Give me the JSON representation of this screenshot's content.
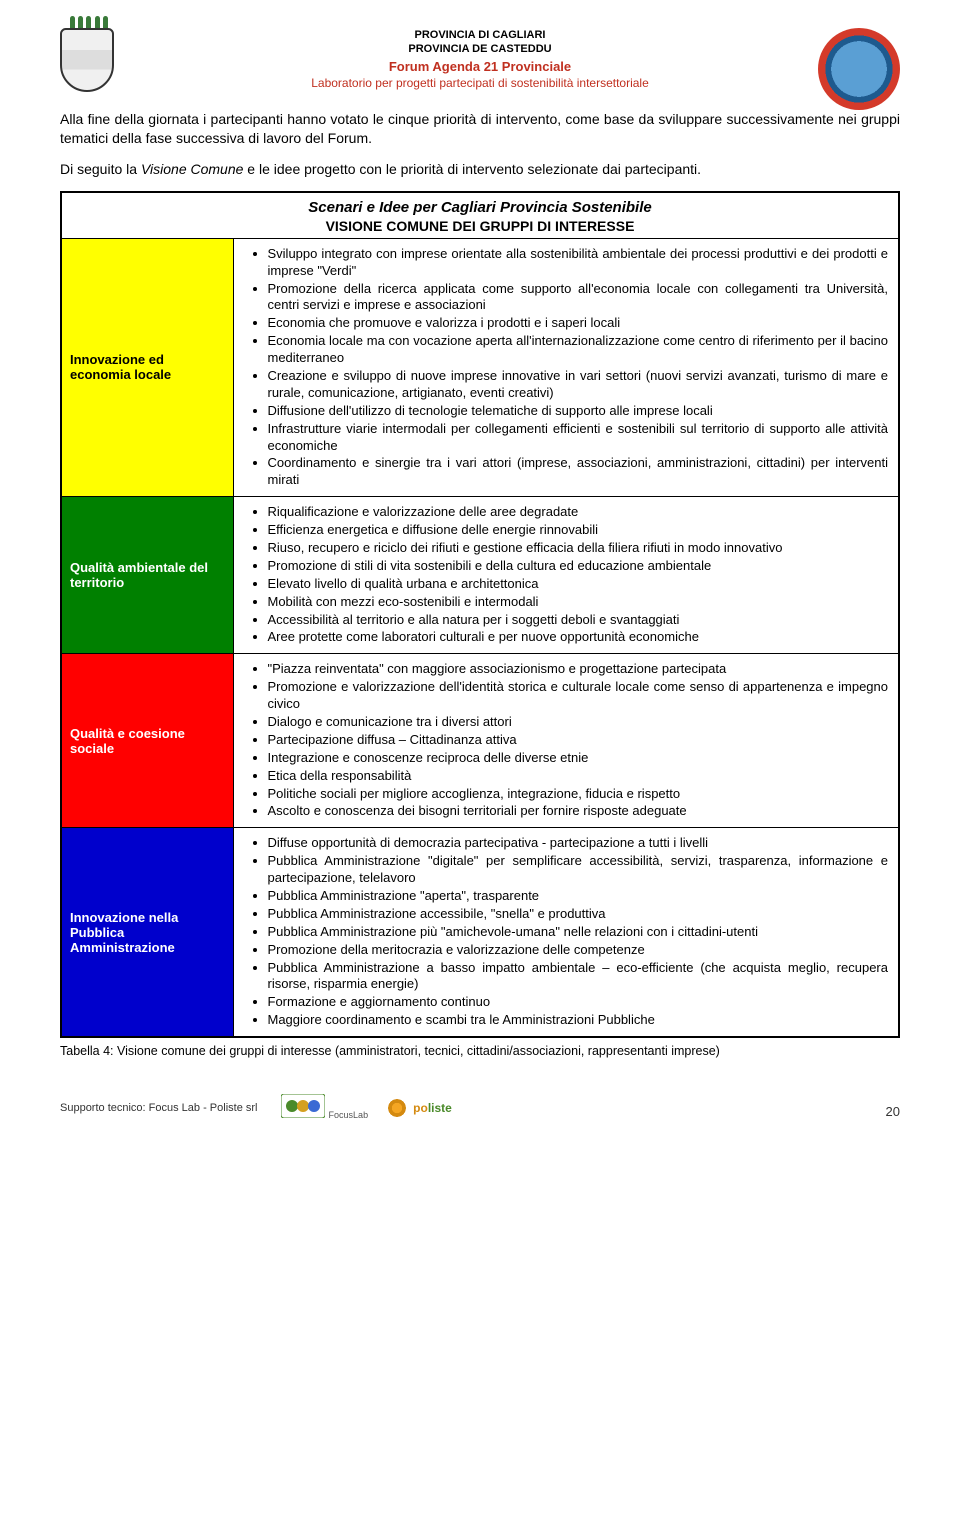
{
  "header": {
    "line1": "PROVINCIA DI CAGLIARI",
    "line2": "PROVINCIA DE CASTEDDU",
    "line3": "Forum Agenda 21 Provinciale",
    "line4": "Laboratorio per progetti partecipati di sostenibilità intersettoriale"
  },
  "intro": {
    "p1": "Alla fine della giornata i partecipanti hanno votato le cinque priorità di intervento, come base da sviluppare successivamente nei gruppi tematici della fase successiva di lavoro del Forum.",
    "p2a": "Di seguito la ",
    "p2b": "Visione Comune",
    "p2c": " e le idee progetto con le priorità di intervento selezionate dai partecipanti."
  },
  "table": {
    "title1": "Scenari e Idee per Cagliari Provincia Sostenibile",
    "title2": "VISIONE COMUNE DEI GRUPPI DI INTERESSE",
    "rows": [
      {
        "label": "Innovazione ed economia locale",
        "color": "#ffff00",
        "textcolor": "#000000",
        "items": [
          "Sviluppo integrato con imprese orientate alla sostenibilità ambientale dei processi produttivi e dei prodotti e imprese \"Verdi\"",
          "Promozione della ricerca applicata come supporto all'economia locale con collegamenti tra Università, centri servizi e imprese e associazioni",
          "Economia che promuove e valorizza i prodotti e i saperi locali",
          "Economia locale ma con vocazione aperta all'internazionalizzazione come centro di riferimento per il bacino mediterraneo",
          "Creazione e sviluppo di nuove imprese innovative in vari settori (nuovi servizi avanzati, turismo di mare e rurale, comunicazione, artigianato, eventi creativi)",
          "Diffusione dell'utilizzo di tecnologie telematiche di supporto alle imprese locali",
          "Infrastrutture viarie intermodali per collegamenti efficienti e sostenibili sul territorio di supporto alle attività economiche",
          "Coordinamento e sinergie tra i vari attori (imprese, associazioni, amministrazioni, cittadini) per interventi mirati"
        ]
      },
      {
        "label": "Qualità ambientale del territorio",
        "color": "#008000",
        "textcolor": "#ffffff",
        "items": [
          "Riqualificazione e valorizzazione delle aree degradate",
          "Efficienza energetica e diffusione delle energie rinnovabili",
          "Riuso, recupero e riciclo dei rifiuti e gestione efficacia della filiera rifiuti in modo innovativo",
          "Promozione di stili di vita sostenibili e della cultura ed educazione ambientale",
          "Elevato livello di qualità urbana e architettonica",
          "Mobilità con mezzi eco-sostenibili e intermodali",
          "Accessibilità al territorio e alla natura per i soggetti deboli e svantaggiati",
          "Aree protette come laboratori culturali e per nuove opportunità economiche"
        ]
      },
      {
        "label": "Qualità e coesione sociale",
        "color": "#ff0000",
        "textcolor": "#ffffff",
        "items": [
          "\"Piazza reinventata\" con maggiore associazionismo e progettazione partecipata",
          "Promozione e valorizzazione dell'identità storica e culturale locale come senso di appartenenza e impegno civico",
          "Dialogo e comunicazione tra i diversi attori",
          "Partecipazione diffusa – Cittadinanza attiva",
          "Integrazione e conoscenze reciproca delle diverse etnie",
          "Etica della responsabilità",
          "Politiche sociali per migliore accoglienza, integrazione, fiducia e rispetto",
          "Ascolto e conoscenza dei bisogni territoriali per fornire risposte adeguate"
        ]
      },
      {
        "label": "Innovazione nella Pubblica Amministrazione",
        "color": "#0000cc",
        "textcolor": "#ffffff",
        "items": [
          "Diffuse opportunità di democrazia partecipativa - partecipazione a tutti i livelli",
          "Pubblica Amministrazione \"digitale\" per semplificare accessibilità, servizi, trasparenza, informazione e partecipazione, telelavoro",
          "Pubblica Amministrazione \"aperta\", trasparente",
          "Pubblica Amministrazione accessibile, \"snella\" e produttiva",
          "Pubblica Amministrazione più \"amichevole-umana\" nelle relazioni con i cittadini-utenti",
          "Promozione della meritocrazia e valorizzazione delle competenze",
          "Pubblica Amministrazione a basso impatto ambientale – eco-efficiente (che acquista meglio, recupera risorse, risparmia energie)",
          "Formazione e aggiornamento continuo",
          "Maggiore coordinamento e scambi tra le Amministrazioni Pubbliche"
        ]
      }
    ]
  },
  "caption": "Tabella 4: Visione comune dei gruppi di interesse (amministratori, tecnici, cittadini/associazioni, rappresentanti imprese)",
  "footer": {
    "support": "Supporto tecnico: Focus Lab - Poliste srl",
    "focuslab": "FocusLab",
    "poliste_a": "po",
    "poliste_b": "liste",
    "pagenum": "20"
  }
}
